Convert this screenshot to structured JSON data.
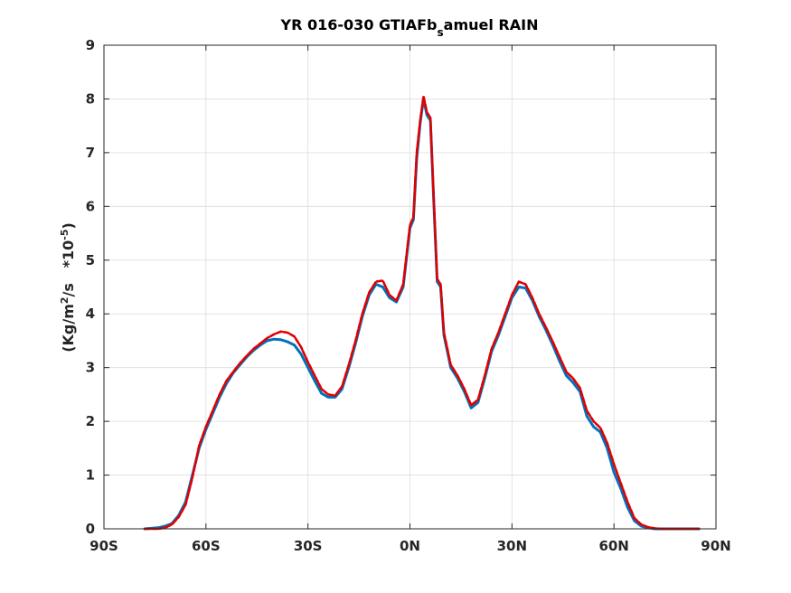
{
  "chart_data": {
    "type": "line",
    "title": {
      "main": "YR 016-030 GTIAFb",
      "subscript": "s",
      "rest": "amuel RAIN"
    },
    "ylabel": {
      "prefix": "(Kg/m",
      "exp1": "2",
      "middle": "/s   *10",
      "exp2": "-5",
      "suffix": ")"
    },
    "xlabel": "",
    "xlim": [
      -90,
      90
    ],
    "ylim": [
      0,
      9
    ],
    "grid": true,
    "x_ticks": [
      {
        "value": -90,
        "label": "90S"
      },
      {
        "value": -60,
        "label": "60S"
      },
      {
        "value": -30,
        "label": "30S"
      },
      {
        "value": 0,
        "label": "0N"
      },
      {
        "value": 30,
        "label": "30N"
      },
      {
        "value": 60,
        "label": "60N"
      },
      {
        "value": 90,
        "label": "90N"
      }
    ],
    "y_ticks": [
      {
        "value": 0,
        "label": "0"
      },
      {
        "value": 1,
        "label": "1"
      },
      {
        "value": 2,
        "label": "2"
      },
      {
        "value": 3,
        "label": "3"
      },
      {
        "value": 4,
        "label": "4"
      },
      {
        "value": 5,
        "label": "5"
      },
      {
        "value": 6,
        "label": "6"
      },
      {
        "value": 7,
        "label": "7"
      },
      {
        "value": 8,
        "label": "8"
      },
      {
        "value": 9,
        "label": "9"
      }
    ],
    "series": [
      {
        "color": "#0072BD",
        "line_style": "solid",
        "x": [
          -78,
          -74,
          -72,
          -70,
          -68,
          -66,
          -64,
          -62,
          -60,
          -58,
          -56,
          -54,
          -52,
          -50,
          -48,
          -46,
          -44,
          -42,
          -40,
          -38,
          -36,
          -34,
          -32,
          -30,
          -28,
          -26,
          -24,
          -22,
          -20,
          -18,
          -16,
          -14,
          -12,
          -10,
          -8,
          -6,
          -4,
          -2,
          0,
          1,
          2,
          3,
          4,
          5,
          6,
          7,
          8,
          9,
          10,
          11,
          12,
          13,
          14,
          16,
          18,
          20,
          22,
          24,
          26,
          28,
          30,
          32,
          34,
          36,
          38,
          40,
          42,
          44,
          46,
          48,
          50,
          52,
          54,
          56,
          58,
          60,
          62,
          64,
          66,
          68,
          70,
          72,
          74,
          76,
          78,
          80,
          82,
          84,
          85
        ],
        "values": [
          0.0,
          0.02,
          0.05,
          0.1,
          0.25,
          0.5,
          1.0,
          1.5,
          1.85,
          2.15,
          2.45,
          2.7,
          2.9,
          3.05,
          3.2,
          3.32,
          3.42,
          3.5,
          3.53,
          3.52,
          3.48,
          3.42,
          3.25,
          3.0,
          2.75,
          2.52,
          2.45,
          2.45,
          2.6,
          3.0,
          3.45,
          3.95,
          4.35,
          4.55,
          4.5,
          4.3,
          4.22,
          4.5,
          5.6,
          5.75,
          6.9,
          7.55,
          8.0,
          7.7,
          7.6,
          6.1,
          4.6,
          4.5,
          3.6,
          3.3,
          3.0,
          2.9,
          2.8,
          2.55,
          2.25,
          2.35,
          2.8,
          3.3,
          3.6,
          3.95,
          4.3,
          4.5,
          4.48,
          4.25,
          3.95,
          3.7,
          3.42,
          3.12,
          2.85,
          2.72,
          2.55,
          2.1,
          1.9,
          1.8,
          1.5,
          1.05,
          0.75,
          0.4,
          0.15,
          0.05,
          0.02,
          0.0,
          0.0,
          0.0,
          0.0,
          0.0,
          0.0,
          0.0,
          0.0
        ]
      },
      {
        "color": "#E00000",
        "line_style": "dashed",
        "x": [
          -78,
          -74,
          -72,
          -70,
          -68,
          -66,
          -64,
          -62,
          -60,
          -58,
          -56,
          -54,
          -52,
          -50,
          -48,
          -46,
          -44,
          -42,
          -40,
          -38,
          -36,
          -34,
          -32,
          -30,
          -28,
          -26,
          -24,
          -22,
          -20,
          -18,
          -16,
          -14,
          -12,
          -10,
          -8,
          -6,
          -4,
          -2,
          0,
          1,
          2,
          3,
          4,
          5,
          6,
          7,
          8,
          9,
          10,
          11,
          12,
          13,
          14,
          16,
          18,
          20,
          22,
          24,
          26,
          28,
          30,
          32,
          34,
          36,
          38,
          40,
          42,
          44,
          46,
          48,
          50,
          52,
          54,
          56,
          58,
          60,
          62,
          64,
          66,
          68,
          70,
          72,
          74,
          76,
          78,
          80,
          82,
          84,
          85
        ],
        "values": [
          0.0,
          0.0,
          0.02,
          0.08,
          0.22,
          0.45,
          0.95,
          1.55,
          1.9,
          2.2,
          2.5,
          2.75,
          2.92,
          3.08,
          3.22,
          3.35,
          3.45,
          3.55,
          3.62,
          3.67,
          3.65,
          3.58,
          3.38,
          3.1,
          2.85,
          2.6,
          2.5,
          2.48,
          2.65,
          3.05,
          3.5,
          4.0,
          4.4,
          4.6,
          4.62,
          4.35,
          4.25,
          4.55,
          5.65,
          5.8,
          7.0,
          7.6,
          8.05,
          7.75,
          7.65,
          6.15,
          4.65,
          4.55,
          3.65,
          3.35,
          3.05,
          2.95,
          2.85,
          2.6,
          2.3,
          2.4,
          2.85,
          3.35,
          3.65,
          4.0,
          4.35,
          4.6,
          4.55,
          4.3,
          4.0,
          3.75,
          3.48,
          3.2,
          2.92,
          2.8,
          2.62,
          2.2,
          2.0,
          1.88,
          1.6,
          1.2,
          0.85,
          0.5,
          0.2,
          0.08,
          0.03,
          0.01,
          0.0,
          0.0,
          0.0,
          0.0,
          0.0,
          0.0,
          0.0
        ]
      }
    ]
  }
}
